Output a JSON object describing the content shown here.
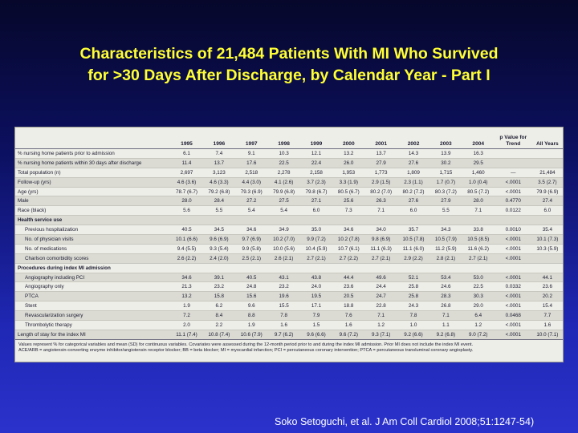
{
  "slide": {
    "title_line1": "Characteristics of 21,484 Patients With MI Who Survived",
    "title_line2": "for >30 Days After Discharge, by Calendar Year - Part I",
    "citation": "Soko Setoguchi, et al. J Am Coll Cardiol 2008;51:1247-54)"
  },
  "table": {
    "headers": [
      "",
      "1995",
      "1996",
      "1997",
      "1998",
      "1999",
      "2000",
      "2001",
      "2002",
      "2003",
      "2004",
      "p Value for Trend",
      "All Years"
    ],
    "rows": [
      {
        "label": "% nursing home patients prior to admission",
        "cells": [
          "6.1",
          "7.4",
          "9.1",
          "10.3",
          "12.1",
          "13.2",
          "13.7",
          "14.3",
          "13.9",
          "16.3",
          "",
          ""
        ]
      },
      {
        "label": "% nursing home patients within 30 days after discharge",
        "cells": [
          "11.4",
          "13.7",
          "17.6",
          "22.5",
          "22.4",
          "26.0",
          "27.9",
          "27.6",
          "30.2",
          "29.5",
          "",
          ""
        ]
      },
      {
        "label": "Total population (n)",
        "cells": [
          "2,697",
          "3,123",
          "2,518",
          "2,278",
          "2,158",
          "1,953",
          "1,773",
          "1,809",
          "1,715",
          "1,460",
          "—",
          "21,484"
        ]
      },
      {
        "label": "Follow-up (yrs)",
        "cells": [
          "4.6 (3.6)",
          "4.6 (3.3)",
          "4.4 (3.0)",
          "4.1 (2.6)",
          "3.7 (2.3)",
          "3.3 (1.9)",
          "2.9 (1.5)",
          "2.3 (1.1)",
          "1.7 (0.7)",
          "1.0 (0.4)",
          "<.0001",
          "3.5 (2.7)"
        ]
      },
      {
        "label": "Age (yrs)",
        "cells": [
          "78.7 (6.7)",
          "79.2 (6.8)",
          "79.3 (6.9)",
          "79.9 (6.8)",
          "79.8 (6.7)",
          "80.5 (6.7)",
          "80.2 (7.0)",
          "80.2 (7.2)",
          "80.3 (7.2)",
          "80.5 (7.2)",
          "<.0001",
          "79.9 (6.9)"
        ]
      },
      {
        "label": "Male",
        "cells": [
          "28.0",
          "28.4",
          "27.2",
          "27.5",
          "27.1",
          "25.6",
          "26.3",
          "27.6",
          "27.9",
          "28.0",
          "0.4770",
          "27.4"
        ]
      },
      {
        "label": "Race (black)",
        "cells": [
          "5.6",
          "5.5",
          "5.4",
          "5.4",
          "6.0",
          "7.3",
          "7.1",
          "6.0",
          "5.5",
          "7.1",
          "0.0122",
          "6.0"
        ]
      },
      {
        "label": "Health service use",
        "section": true,
        "cells": [
          "",
          "",
          "",
          "",
          "",
          "",
          "",
          "",
          "",
          "",
          "",
          ""
        ]
      },
      {
        "label": "Previous hospitalization",
        "indent": true,
        "cells": [
          "40.5",
          "34.5",
          "34.6",
          "34.9",
          "35.0",
          "34.6",
          "34.0",
          "35.7",
          "34.3",
          "33.8",
          "0.0010",
          "35.4"
        ]
      },
      {
        "label": "No. of physician visits",
        "indent": true,
        "cells": [
          "10.1 (6.6)",
          "9.6 (6.9)",
          "9.7 (6.9)",
          "10.2 (7.0)",
          "9.9 (7.2)",
          "10.2 (7.8)",
          "9.8 (6.9)",
          "10.5 (7.8)",
          "10.5 (7.9)",
          "10.5 (8.5)",
          "<.0001",
          "10.1 (7.3)"
        ]
      },
      {
        "label": "No. of medications",
        "indent": true,
        "cells": [
          "9.4 (5.5)",
          "9.3 (5.4)",
          "9.9 (5.8)",
          "10.0 (5.6)",
          "10.4 (5.9)",
          "10.7 (6.1)",
          "11.1 (6.3)",
          "11.1 (6.0)",
          "11.2 (5.9)",
          "11.6 (6.2)",
          "<.0001",
          "10.3 (5.9)"
        ]
      },
      {
        "label": "Charlson comorbidity scores",
        "indent": true,
        "cells": [
          "2.6 (2.2)",
          "2.4 (2.0)",
          "2.5 (2.1)",
          "2.6 (2.1)",
          "2.7 (2.1)",
          "2.7 (2.2)",
          "2.7 (2.1)",
          "2.9 (2.2)",
          "2.8 (2.1)",
          "2.7 (2.1)",
          "<.0001",
          ""
        ]
      },
      {
        "label": "Procedures during index MI admission",
        "section": true,
        "cells": [
          "",
          "",
          "",
          "",
          "",
          "",
          "",
          "",
          "",
          "",
          "",
          ""
        ]
      },
      {
        "label": "Angiography including PCI",
        "indent": true,
        "cells": [
          "34.6",
          "39.1",
          "40.5",
          "43.1",
          "43.8",
          "44.4",
          "49.6",
          "52.1",
          "53.4",
          "53.0",
          "<.0001",
          "44.1"
        ]
      },
      {
        "label": "Angiography only",
        "indent": true,
        "cells": [
          "21.3",
          "23.2",
          "24.8",
          "23.2",
          "24.0",
          "23.6",
          "24.4",
          "25.8",
          "24.6",
          "22.5",
          "0.0332",
          "23.6"
        ]
      },
      {
        "label": "PTCA",
        "indent": true,
        "cells": [
          "13.2",
          "15.8",
          "15.6",
          "19.6",
          "19.5",
          "20.5",
          "24.7",
          "25.8",
          "28.3",
          "30.3",
          "<.0001",
          "20.2"
        ]
      },
      {
        "label": "Stent",
        "indent": true,
        "cells": [
          "1.9",
          "6.2",
          "9.6",
          "15.5",
          "17.1",
          "18.8",
          "22.8",
          "24.3",
          "26.8",
          "29.0",
          "<.0001",
          "15.4"
        ]
      },
      {
        "label": "Revascularization surgery",
        "indent": true,
        "cells": [
          "7.2",
          "8.4",
          "8.8",
          "7.8",
          "7.9",
          "7.6",
          "7.1",
          "7.8",
          "7.1",
          "6.4",
          "0.0468",
          "7.7"
        ]
      },
      {
        "label": "Thrombolytic therapy",
        "indent": true,
        "cells": [
          "2.0",
          "2.2",
          "1.9",
          "1.6",
          "1.5",
          "1.6",
          "1.2",
          "1.0",
          "1.1",
          "1.2",
          "<.0001",
          "1.6"
        ]
      },
      {
        "label": "Length of stay for the index MI",
        "cells": [
          "11.1 (7.4)",
          "10.8 (7.4)",
          "10.6 (7.9)",
          "9.7 (6.2)",
          "9.6 (6.6)",
          "9.6 (7.2)",
          "9.3 (7.1)",
          "9.2 (6.6)",
          "9.2 (6.8)",
          "9.0 (7.2)",
          "<.0001",
          "10.0 (7.1)"
        ]
      }
    ],
    "footnote_line1": "Values represent % for categorical variables and mean (SD) for continuous variables. Covariates were assessed during the 12-month period prior to and during the index MI admission. Prior MI does not include the index MI event.",
    "footnote_line2": "ACE/ARB = angiotensin-converting enzyme inhibitor/angiotensin receptor blocker; BB = beta blocker; MI = myocardial infarction; PCI = percutaneous coronary intervention; PTCA = percutaneous transluminal coronary angioplasty."
  }
}
